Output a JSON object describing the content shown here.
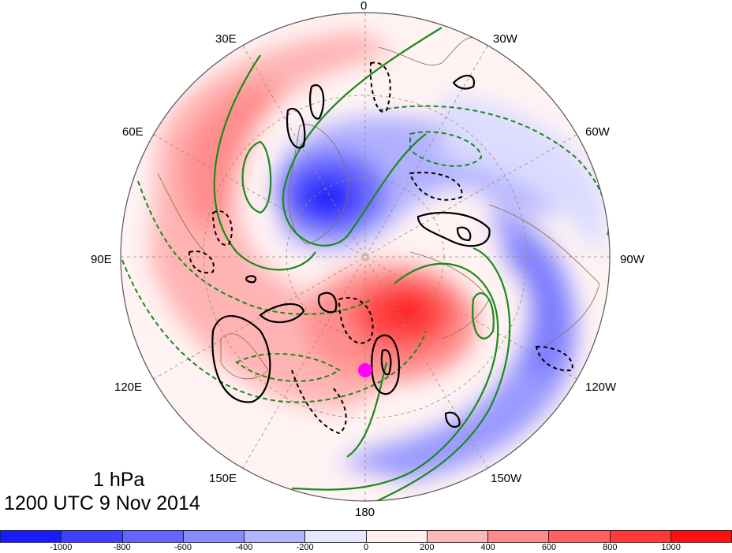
{
  "map": {
    "projection": "polar stereographic",
    "longitude_labels": {
      "top": "0",
      "top_left_1": "30E",
      "top_right_1": "30W",
      "left_upper": "60E",
      "right_upper": "60W",
      "left": "90E",
      "right": "90W",
      "left_lower": "120E",
      "right_lower": "120W",
      "bottom_left": "150E",
      "bottom_right": "150W",
      "bottom": "180"
    },
    "marker_color": "#ff00ff"
  },
  "title": {
    "level": "1 hPa",
    "time": "1200 UTC 9 Nov 2014"
  },
  "colorbar": {
    "colors": [
      "#1a1aff",
      "#4040ff",
      "#6464ff",
      "#8a8aff",
      "#b4b4ff",
      "#e6e6ff",
      "#fff0f0",
      "#ffb8b8",
      "#ff8c8c",
      "#ff6060",
      "#ff3838",
      "#ff1010"
    ],
    "ticks": [
      "-1000",
      "-800",
      "-600",
      "-400",
      "-200",
      "0",
      "200",
      "400",
      "600",
      "800",
      "1000"
    ]
  }
}
